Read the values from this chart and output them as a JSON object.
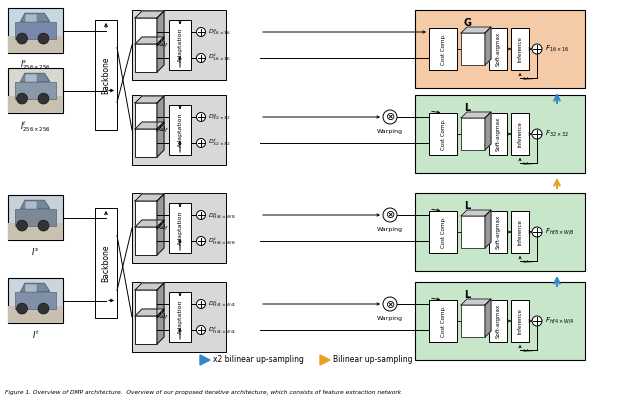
{
  "fig_width": 6.4,
  "fig_height": 4.0,
  "dpi": 100,
  "bg_color": "#ffffff",
  "caption_full": "Figure 1. Overview of DMP architecture.  Overview of our proposed iterative architecture, which consists of feature extraction network",
  "row_configs": [
    {
      "ds": "$D^s_{16\\times16}$",
      "dt": "$D^t_{16\\times16}$",
      "df": "$F_{16\\times16}$",
      "warping": false,
      "color": "#f5cba7",
      "level": "G",
      "up_arrow": "blue"
    },
    {
      "ds": "$D^s_{32\\times32}$",
      "dt": "$D^t_{32\\times32}$",
      "df": "$F_{32\\times32}$",
      "warping": true,
      "color": "#c8e6c9",
      "level": "L",
      "up_arrow": "orange"
    },
    {
      "ds": "$D^s_{H/8\\times W/8}$",
      "dt": "$D^t_{H/8\\times W/8}$",
      "df": "$F_{H/8\\times W/8}$",
      "warping": true,
      "color": "#c8e6c9",
      "level": "L",
      "up_arrow": "blue"
    },
    {
      "ds": "$D^s_{H/4\\times W/4}$",
      "dt": "$D^t_{H/4\\times W/4}$",
      "df": "$F_{H/4\\times W/4}$",
      "warping": true,
      "color": "#c8e6c9",
      "level": "L",
      "up_arrow": null
    }
  ]
}
